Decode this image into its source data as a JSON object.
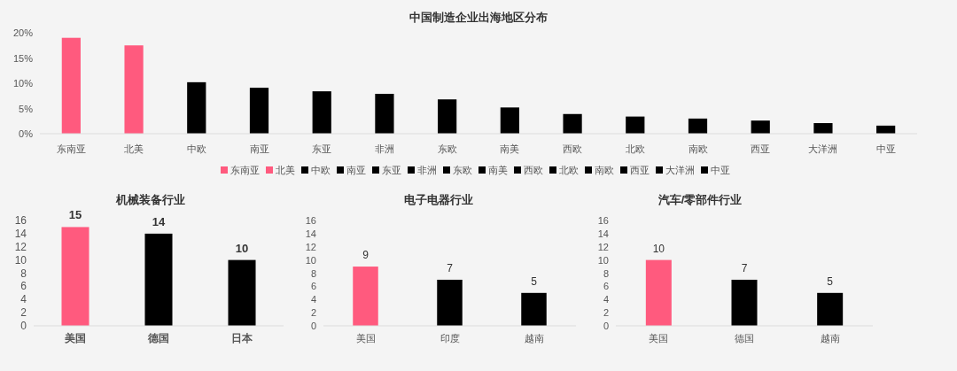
{
  "chart_data": [
    {
      "type": "bar",
      "title": "中国制造企业出海地区分布",
      "categories": [
        "东南亚",
        "北美",
        "中欧",
        "南亚",
        "东亚",
        "非洲",
        "东欧",
        "南美",
        "西欧",
        "北欧",
        "南欧",
        "西亚",
        "大洋洲",
        "中亚"
      ],
      "series": [
        {
          "name": "东南亚",
          "color": "#ff5a7e",
          "values": [
            19.0,
            null,
            null,
            null,
            null,
            null,
            null,
            null,
            null,
            null,
            null,
            null,
            null,
            null
          ]
        },
        {
          "name": "北美",
          "color": "#ff5a7e",
          "values": [
            null,
            17.5,
            null,
            null,
            null,
            null,
            null,
            null,
            null,
            null,
            null,
            null,
            null,
            null
          ]
        },
        {
          "name": "中欧",
          "color": "#000000",
          "values": [
            null,
            null,
            10.2,
            null,
            null,
            null,
            null,
            null,
            null,
            null,
            null,
            null,
            null,
            null
          ]
        },
        {
          "name": "南亚",
          "color": "#000000",
          "values": [
            null,
            null,
            null,
            9.1,
            null,
            null,
            null,
            null,
            null,
            null,
            null,
            null,
            null,
            null
          ]
        },
        {
          "name": "东亚",
          "color": "#000000",
          "values": [
            null,
            null,
            null,
            null,
            8.4,
            null,
            null,
            null,
            null,
            null,
            null,
            null,
            null,
            null
          ]
        },
        {
          "name": "非洲",
          "color": "#000000",
          "values": [
            null,
            null,
            null,
            null,
            null,
            7.9,
            null,
            null,
            null,
            null,
            null,
            null,
            null,
            null
          ]
        },
        {
          "name": "东欧",
          "color": "#000000",
          "values": [
            null,
            null,
            null,
            null,
            null,
            null,
            6.8,
            null,
            null,
            null,
            null,
            null,
            null,
            null
          ]
        },
        {
          "name": "南美",
          "color": "#000000",
          "values": [
            null,
            null,
            null,
            null,
            null,
            null,
            null,
            5.2,
            null,
            null,
            null,
            null,
            null,
            null
          ]
        },
        {
          "name": "西欧",
          "color": "#000000",
          "values": [
            null,
            null,
            null,
            null,
            null,
            null,
            null,
            null,
            3.9,
            null,
            null,
            null,
            null,
            null
          ]
        },
        {
          "name": "北欧",
          "color": "#000000",
          "values": [
            null,
            null,
            null,
            null,
            null,
            null,
            null,
            null,
            null,
            3.4,
            null,
            null,
            null,
            null
          ]
        },
        {
          "name": "南欧",
          "color": "#000000",
          "values": [
            null,
            null,
            null,
            null,
            null,
            null,
            null,
            null,
            null,
            null,
            3.0,
            null,
            null,
            null
          ]
        },
        {
          "name": "西亚",
          "color": "#000000",
          "values": [
            null,
            null,
            null,
            null,
            null,
            null,
            null,
            null,
            null,
            null,
            null,
            2.6,
            null,
            null
          ]
        },
        {
          "name": "大洋洲",
          "color": "#000000",
          "values": [
            null,
            null,
            null,
            null,
            null,
            null,
            null,
            null,
            null,
            null,
            null,
            null,
            2.1,
            null
          ]
        },
        {
          "name": "中亚",
          "color": "#000000",
          "values": [
            null,
            null,
            null,
            null,
            null,
            null,
            null,
            null,
            null,
            null,
            null,
            null,
            null,
            1.6
          ]
        }
      ],
      "ylim": [
        0,
        20
      ],
      "yticks": [
        {
          "value": 0,
          "label": "0%"
        },
        {
          "value": 5,
          "label": "5%"
        },
        {
          "value": 10,
          "label": "10%"
        },
        {
          "value": 15,
          "label": "15%"
        },
        {
          "value": 20,
          "label": "20%"
        }
      ],
      "legend": "bottom"
    },
    {
      "type": "bar",
      "title": "机械装备行业",
      "categories": [
        "美国",
        "德国",
        "日本"
      ],
      "values": [
        15,
        14,
        10
      ],
      "colors": [
        "#ff5a7e",
        "#000000",
        "#000000"
      ],
      "ylim": [
        0,
        16
      ],
      "yticks": [
        0,
        2,
        4,
        6,
        8,
        10,
        12,
        14,
        16
      ],
      "data_labels": true
    },
    {
      "type": "bar",
      "title": "电子电器行业",
      "categories": [
        "美国",
        "印度",
        "越南"
      ],
      "values": [
        9,
        7,
        5
      ],
      "colors": [
        "#ff5a7e",
        "#000000",
        "#000000"
      ],
      "ylim": [
        0,
        16
      ],
      "yticks": [
        0,
        2,
        4,
        6,
        8,
        10,
        12,
        14,
        16
      ],
      "data_labels": true
    },
    {
      "type": "bar",
      "title": "汽车/零部件行业",
      "categories": [
        "美国",
        "德国",
        "越南"
      ],
      "values": [
        10,
        7,
        5
      ],
      "colors": [
        "#ff5a7e",
        "#000000",
        "#000000"
      ],
      "ylim": [
        0,
        16
      ],
      "yticks": [
        0,
        2,
        4,
        6,
        8,
        10,
        12,
        14,
        16
      ],
      "data_labels": true
    }
  ]
}
